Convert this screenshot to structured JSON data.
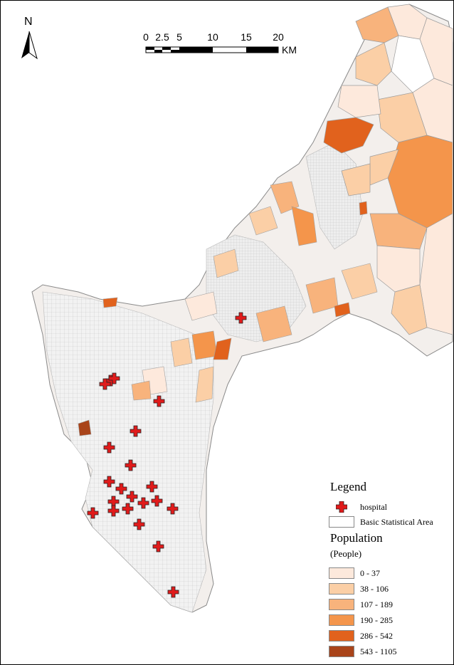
{
  "north_arrow": {
    "label": "N"
  },
  "scale_bar": {
    "ticks": [
      "0",
      "2.5",
      "5",
      "10",
      "15",
      "20"
    ],
    "unit": "KM"
  },
  "legend": {
    "title": "Legend",
    "hospital_label": "hospital",
    "area_label": "Basic Statistical Area",
    "population_title": "Population",
    "population_unit": "(People)",
    "classes": [
      {
        "label": "0 - 37",
        "color": "#fde9dc"
      },
      {
        "label": "38 - 106",
        "color": "#fbcfa6"
      },
      {
        "label": "107 - 189",
        "color": "#f8b37c"
      },
      {
        "label": "190 - 285",
        "color": "#f4954b"
      },
      {
        "label": "286 - 542",
        "color": "#e1621d"
      },
      {
        "label": "543 - 1105",
        "color": "#a9441a"
      }
    ]
  },
  "colors": {
    "hospital": "#e01b1b",
    "boundary": "#c8c8c8",
    "urban_fill": "#ededed"
  }
}
